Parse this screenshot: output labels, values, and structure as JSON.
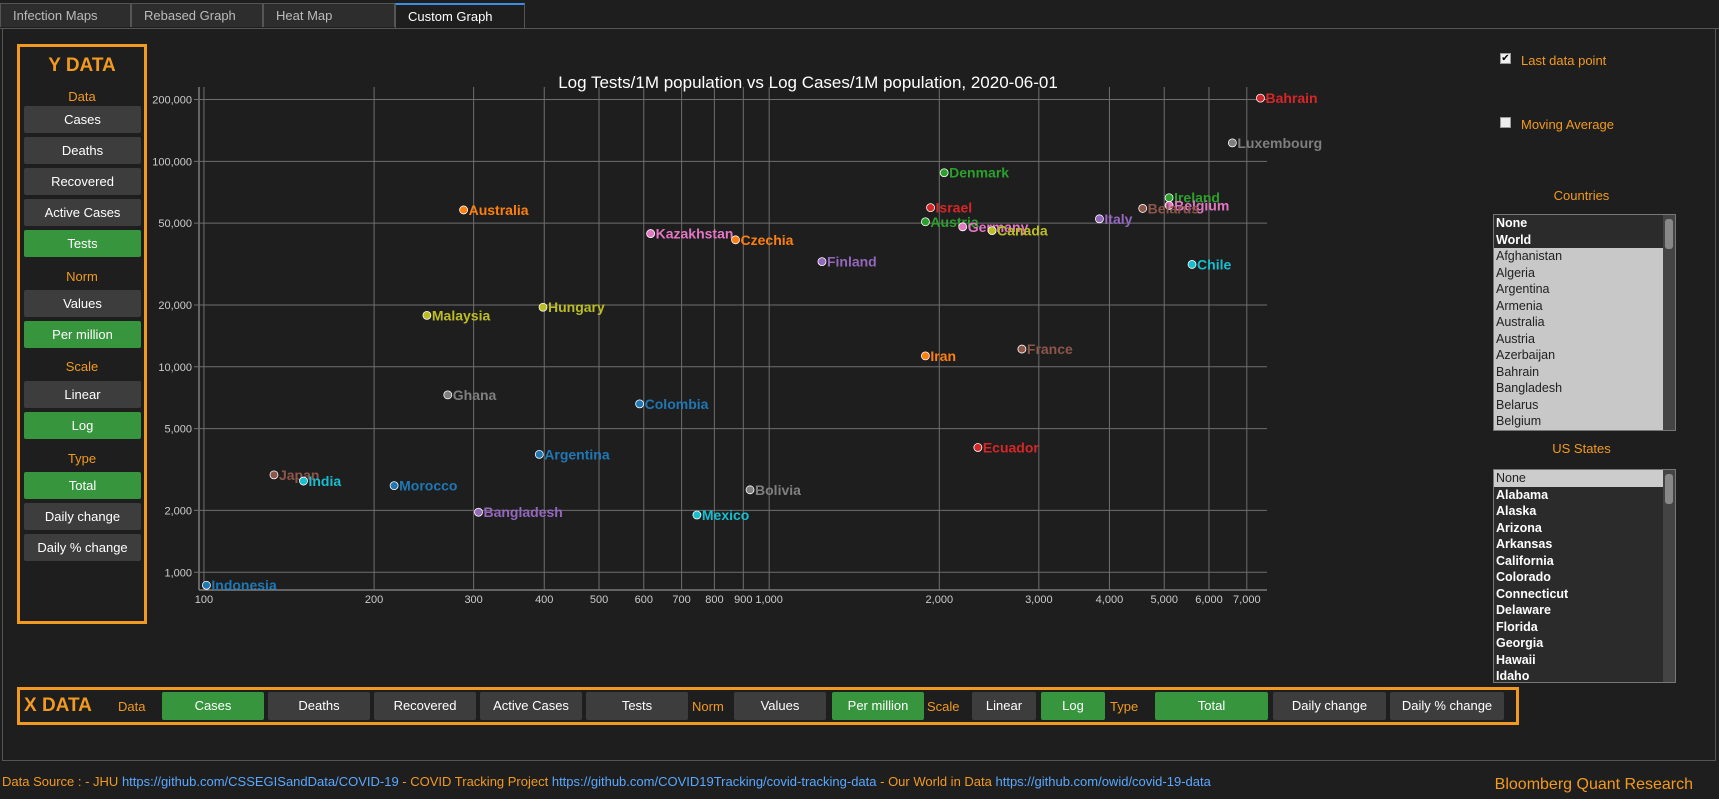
{
  "tabs": [
    {
      "label": "Infection Maps"
    },
    {
      "label": "Rebased Graph"
    },
    {
      "label": "Heat Map"
    },
    {
      "label": "Custom Graph"
    }
  ],
  "ydata": {
    "title": "Y DATA",
    "data_label": "Data",
    "norm_label": "Norm",
    "scale_label": "Scale",
    "type_label": "Type",
    "buttons": {
      "cases": "Cases",
      "deaths": "Deaths",
      "recovered": "Recovered",
      "active": "Active Cases",
      "tests": "Tests",
      "values": "Values",
      "per_million": "Per million",
      "linear": "Linear",
      "log": "Log",
      "total": "Total",
      "daily": "Daily change",
      "daily_pct": "Daily % change"
    }
  },
  "xdata": {
    "title": "X DATA",
    "data_label": "Data",
    "norm_label": "Norm",
    "scale_label": "Scale",
    "type_label": "Type",
    "buttons": {
      "cases": "Cases",
      "deaths": "Deaths",
      "recovered": "Recovered",
      "active": "Active Cases",
      "tests": "Tests",
      "values": "Values",
      "per_million": "Per million",
      "linear": "Linear",
      "log": "Log",
      "total": "Total",
      "daily": "Daily change",
      "daily_pct": "Daily % change"
    }
  },
  "options": {
    "last_point_label": "Last data point",
    "last_point_checked": "✔",
    "moving_avg_label": "Moving Average"
  },
  "countries": {
    "header": "Countries",
    "items": [
      "None",
      "World",
      "Afghanistan",
      "Algeria",
      "Argentina",
      "Armenia",
      "Australia",
      "Austria",
      "Azerbaijan",
      "Bahrain",
      "Bangladesh",
      "Belarus",
      "Belgium"
    ]
  },
  "us_states": {
    "header": "US States",
    "items": [
      "None",
      "Alabama",
      "Alaska",
      "Arizona",
      "Arkansas",
      "California",
      "Colorado",
      "Connecticut",
      "Delaware",
      "Florida",
      "Georgia",
      "Hawaii",
      "Idaho"
    ]
  },
  "footer": {
    "prefix": "Data Source : - JHU ",
    "jhu_link": "https://github.com/CSSEGISandData/COVID-19",
    "mid1": " - COVID Tracking Project ",
    "ctp_link": "https://github.com/COVID19Tracking/covid-tracking-data",
    "mid2": " - Our World in Data ",
    "owid_link": "https://github.com/owid/covid-19-data",
    "brand": "Bloomberg Quant Research"
  },
  "chart_data": {
    "type": "scatter",
    "title": "Log Tests/1M population vs Log Cases/1M population, 2020-06-01",
    "xscale": "log",
    "yscale": "log",
    "xlim": [
      98,
      7600
    ],
    "ylim": [
      820,
      230000
    ],
    "grid": true,
    "xticks": [
      {
        "v": 100,
        "label": "100"
      },
      {
        "v": 200,
        "label": "200"
      },
      {
        "v": 300,
        "label": "300"
      },
      {
        "v": 400,
        "label": "400"
      },
      {
        "v": 500,
        "label": "500"
      },
      {
        "v": 600,
        "label": "600"
      },
      {
        "v": 700,
        "label": "700"
      },
      {
        "v": 800,
        "label": "800"
      },
      {
        "v": 900,
        "label": "900"
      },
      {
        "v": 1000,
        "label": "1,000"
      },
      {
        "v": 2000,
        "label": "2,000"
      },
      {
        "v": 3000,
        "label": "3,000"
      },
      {
        "v": 4000,
        "label": "4,000"
      },
      {
        "v": 5000,
        "label": "5,000"
      },
      {
        "v": 6000,
        "label": "6,000"
      },
      {
        "v": 7000,
        "label": "7,000"
      }
    ],
    "yticks": [
      {
        "v": 1000,
        "label": "1,000"
      },
      {
        "v": 2000,
        "label": "2,000"
      },
      {
        "v": 5000,
        "label": "5,000"
      },
      {
        "v": 10000,
        "label": "10,000"
      },
      {
        "v": 20000,
        "label": "20,000"
      },
      {
        "v": 50000,
        "label": "50,000"
      },
      {
        "v": 100000,
        "label": "100,000"
      },
      {
        "v": 200000,
        "label": "200,000"
      }
    ],
    "points": [
      {
        "name": "Bahrain",
        "x": 7400,
        "y": 203000,
        "color": "#d62728"
      },
      {
        "name": "Luxembourg",
        "x": 6600,
        "y": 123000,
        "color": "#7f7f7f"
      },
      {
        "name": "Denmark",
        "x": 2040,
        "y": 88000,
        "color": "#2ca02c"
      },
      {
        "name": "Ireland",
        "x": 5100,
        "y": 66500,
        "color": "#2ca02c"
      },
      {
        "name": "Belgium",
        "x": 5100,
        "y": 61000,
        "color": "#e377c2"
      },
      {
        "name": "Belarus",
        "x": 4580,
        "y": 59000,
        "color": "#8c564b"
      },
      {
        "name": "Israel",
        "x": 1930,
        "y": 59500,
        "color": "#d62728"
      },
      {
        "name": "Austria",
        "x": 1890,
        "y": 50800,
        "color": "#2ca02c"
      },
      {
        "name": "Germany",
        "x": 2200,
        "y": 48000,
        "color": "#e377c2"
      },
      {
        "name": "Canada",
        "x": 2480,
        "y": 46000,
        "color": "#bcbd22"
      },
      {
        "name": "Italy",
        "x": 3840,
        "y": 52500,
        "color": "#9467bd"
      },
      {
        "name": "Chile",
        "x": 5600,
        "y": 31500,
        "color": "#17becf"
      },
      {
        "name": "Australia",
        "x": 288,
        "y": 58000,
        "color": "#ff7f0e"
      },
      {
        "name": "Kazakhstan",
        "x": 617,
        "y": 44500,
        "color": "#e377c2"
      },
      {
        "name": "Czechia",
        "x": 872,
        "y": 41500,
        "color": "#ff7f0e"
      },
      {
        "name": "Finland",
        "x": 1240,
        "y": 32500,
        "color": "#9467bd"
      },
      {
        "name": "Malaysia",
        "x": 248,
        "y": 17800,
        "color": "#bcbd22"
      },
      {
        "name": "Hungary",
        "x": 398,
        "y": 19500,
        "color": "#bcbd22"
      },
      {
        "name": "Iran",
        "x": 1890,
        "y": 11300,
        "color": "#ff7f0e"
      },
      {
        "name": "France",
        "x": 2800,
        "y": 12200,
        "color": "#8c564b"
      },
      {
        "name": "Ghana",
        "x": 270,
        "y": 7300,
        "color": "#7f7f7f"
      },
      {
        "name": "Colombia",
        "x": 590,
        "y": 6600,
        "color": "#1f77b4"
      },
      {
        "name": "Ecuador",
        "x": 2340,
        "y": 4050,
        "color": "#d62728"
      },
      {
        "name": "Argentina",
        "x": 392,
        "y": 3750,
        "color": "#1f77b4"
      },
      {
        "name": "Japan",
        "x": 133,
        "y": 2980,
        "color": "#8c564b"
      },
      {
        "name": "India",
        "x": 150,
        "y": 2780,
        "color": "#17becf"
      },
      {
        "name": "Morocco",
        "x": 217,
        "y": 2640,
        "color": "#1f77b4"
      },
      {
        "name": "Bolivia",
        "x": 925,
        "y": 2520,
        "color": "#7f7f7f"
      },
      {
        "name": "Bangladesh",
        "x": 306,
        "y": 1960,
        "color": "#9467bd"
      },
      {
        "name": "Mexico",
        "x": 745,
        "y": 1900,
        "color": "#17becf"
      },
      {
        "name": "Indonesia",
        "x": 101,
        "y": 865,
        "color": "#1f77b4"
      }
    ]
  }
}
